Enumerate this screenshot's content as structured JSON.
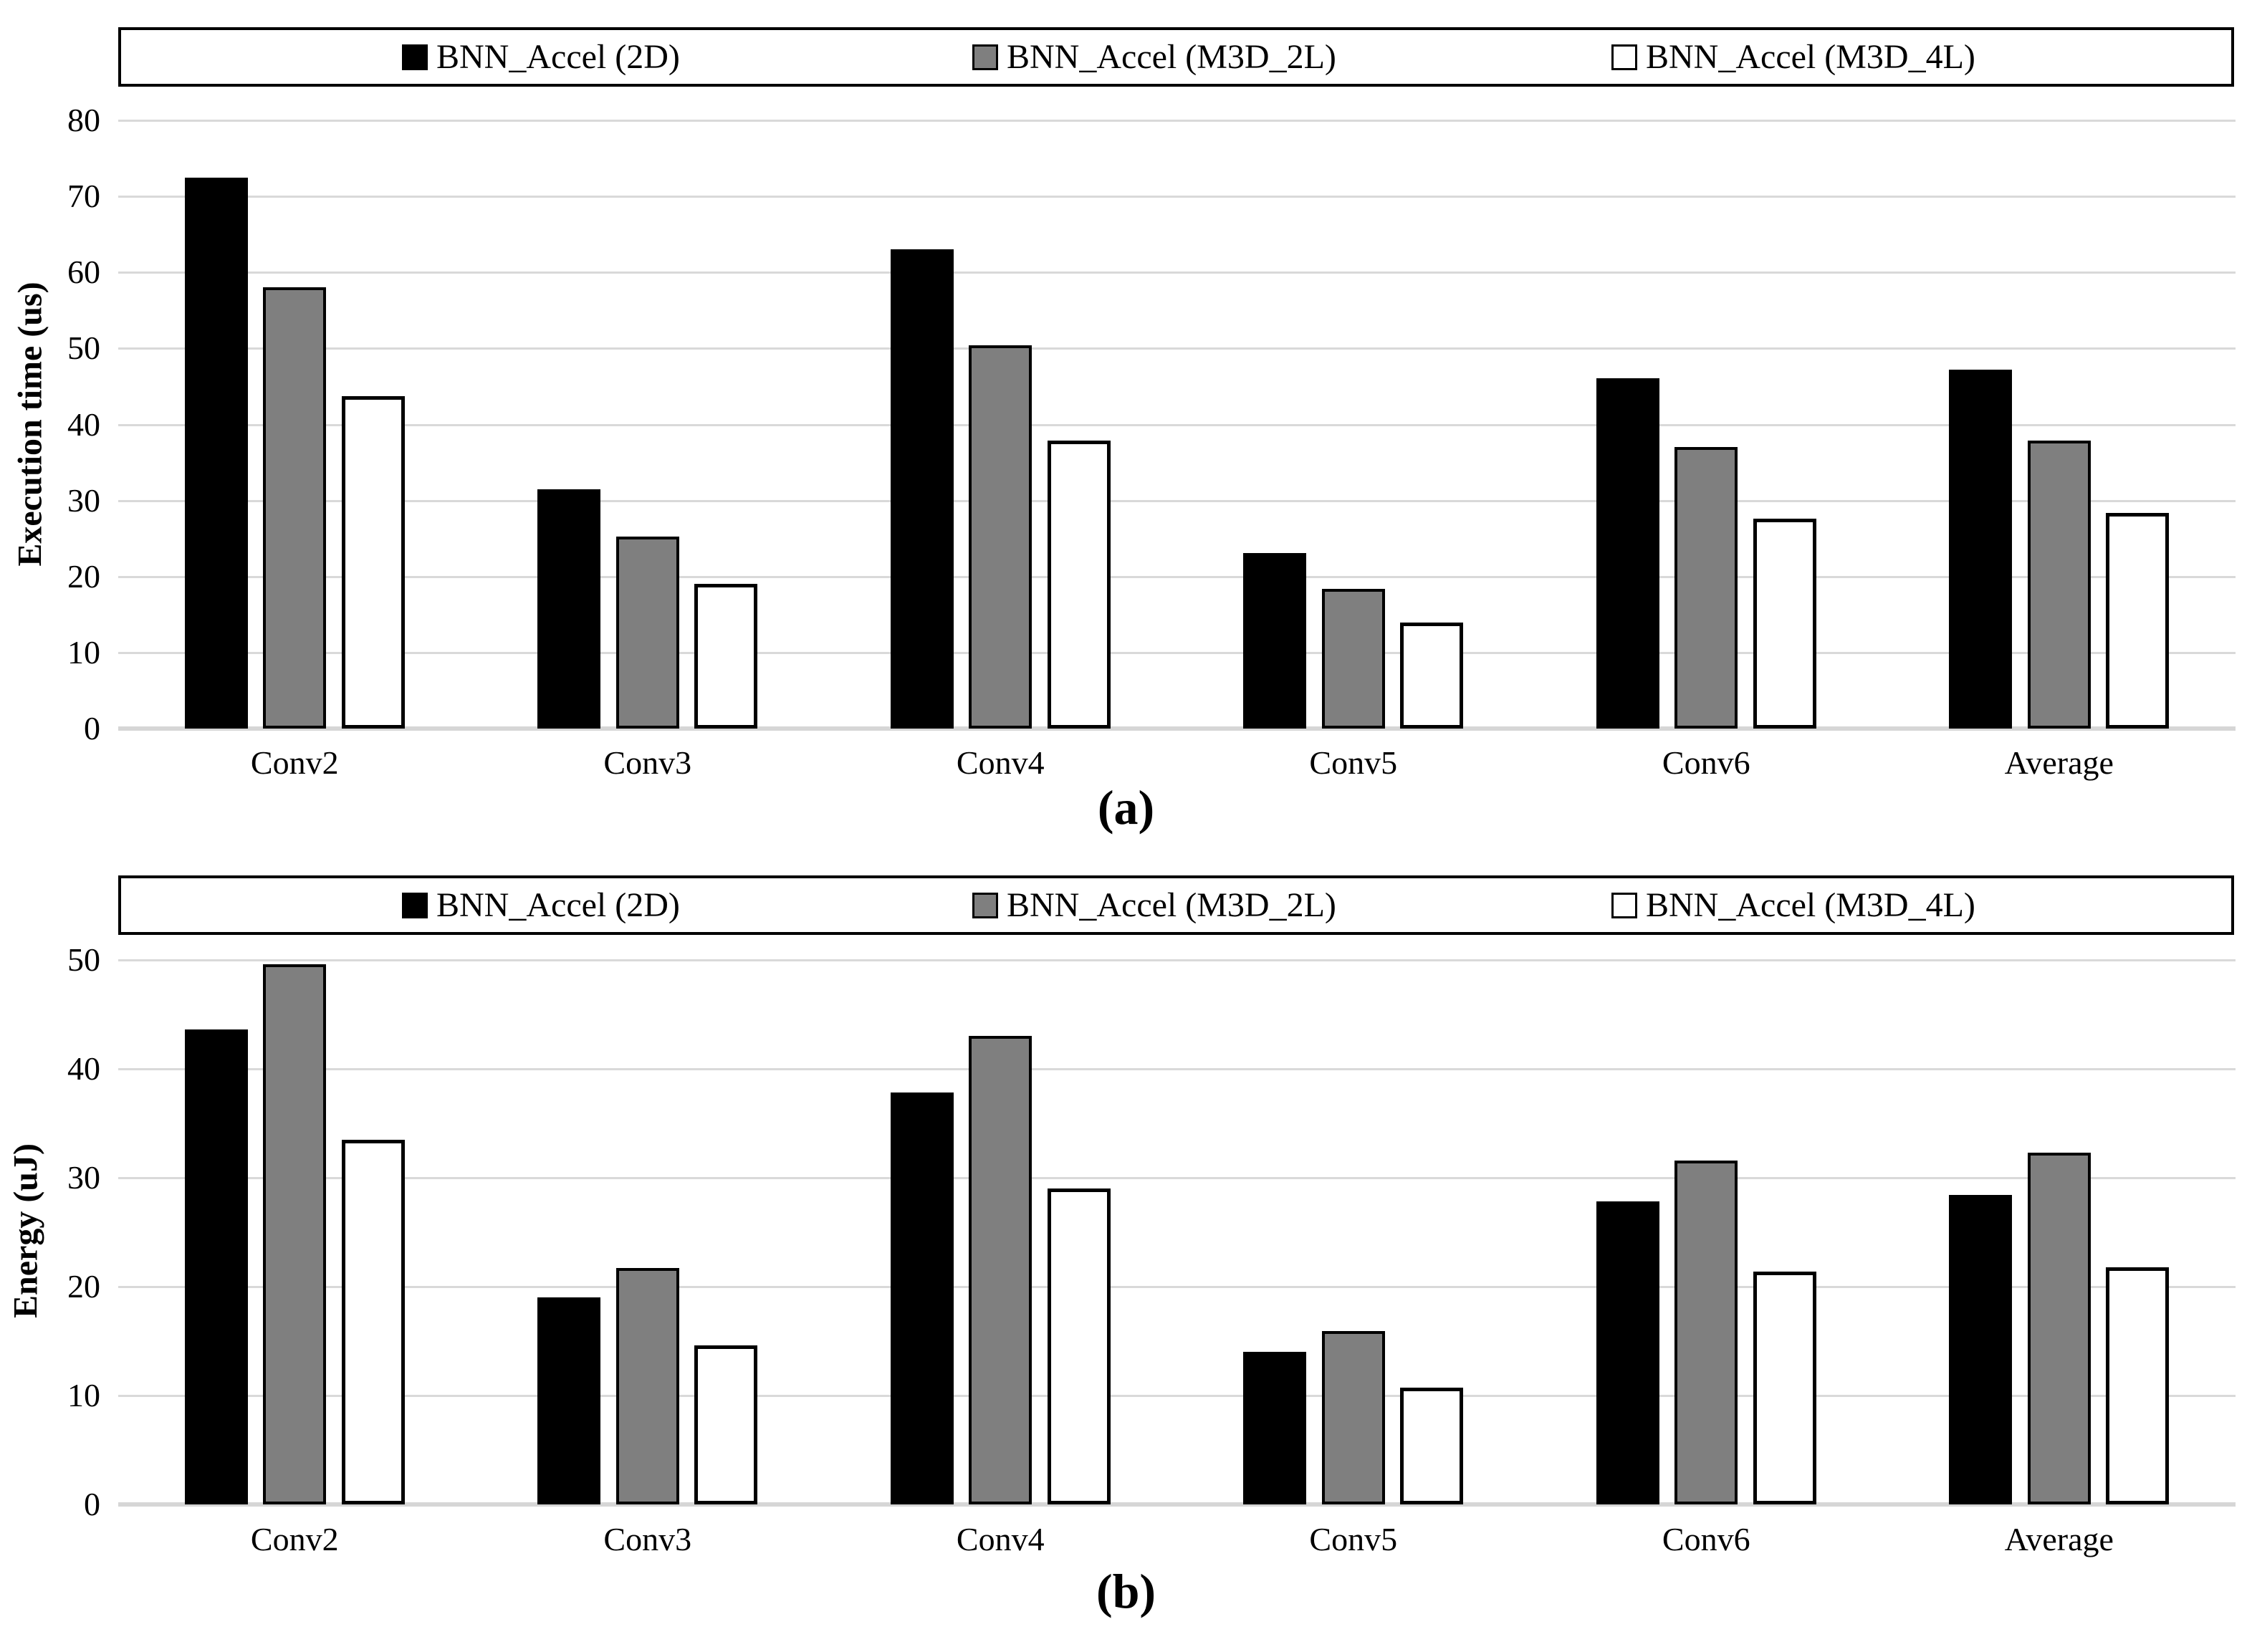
{
  "figure": {
    "background": "#ffffff",
    "grid_color": "#d9d9d9",
    "panels": [
      "(a)",
      "(b)"
    ]
  },
  "chart_data": [
    {
      "type": "bar",
      "panel_label": "(a)",
      "title": "",
      "xlabel": "",
      "ylabel": "Execution time (us)",
      "ylim": [
        0,
        80
      ],
      "ytick_step": 10,
      "ytick_labels": [
        "0",
        "10",
        "20",
        "30",
        "40",
        "50",
        "60",
        "70",
        "80"
      ],
      "grid": true,
      "legend_position": "top",
      "categories": [
        "Conv2",
        "Conv3",
        "Conv4",
        "Conv5",
        "Conv6",
        "Average"
      ],
      "series": [
        {
          "name": "BNN_Accel (2D)",
          "color": "#000000",
          "border": "#000000",
          "values": [
            72.5,
            31.5,
            63.0,
            23.1,
            46.1,
            47.2
          ]
        },
        {
          "name": "BNN_Accel (M3D_2L)",
          "color": "#7f7f7f",
          "border": "#000000",
          "values": [
            58.0,
            25.3,
            50.4,
            18.4,
            37.0,
            37.9
          ]
        },
        {
          "name": "BNN_Accel (M3D_4L)",
          "color": "#ffffff",
          "border": "#000000",
          "values": [
            43.7,
            19.0,
            37.9,
            13.9,
            27.6,
            28.4
          ]
        }
      ]
    },
    {
      "type": "bar",
      "panel_label": "(b)",
      "title": "",
      "xlabel": "",
      "ylabel": "Energy (uJ)",
      "ylim": [
        0,
        50
      ],
      "ytick_step": 10,
      "ytick_labels": [
        "0",
        "10",
        "20",
        "30",
        "40",
        "50"
      ],
      "grid": true,
      "legend_position": "top",
      "categories": [
        "Conv2",
        "Conv3",
        "Conv4",
        "Conv5",
        "Conv6",
        "Average"
      ],
      "series": [
        {
          "name": "BNN_Accel (2D)",
          "color": "#000000",
          "border": "#000000",
          "values": [
            43.6,
            19.0,
            37.8,
            14.0,
            27.8,
            28.4
          ]
        },
        {
          "name": "BNN_Accel (M3D_2L)",
          "color": "#7f7f7f",
          "border": "#000000",
          "values": [
            49.6,
            21.7,
            43.0,
            15.9,
            31.6,
            32.3
          ]
        },
        {
          "name": "BNN_Accel (M3D_4L)",
          "color": "#ffffff",
          "border": "#000000",
          "values": [
            33.5,
            14.6,
            29.0,
            10.7,
            21.4,
            21.8
          ]
        }
      ]
    }
  ]
}
